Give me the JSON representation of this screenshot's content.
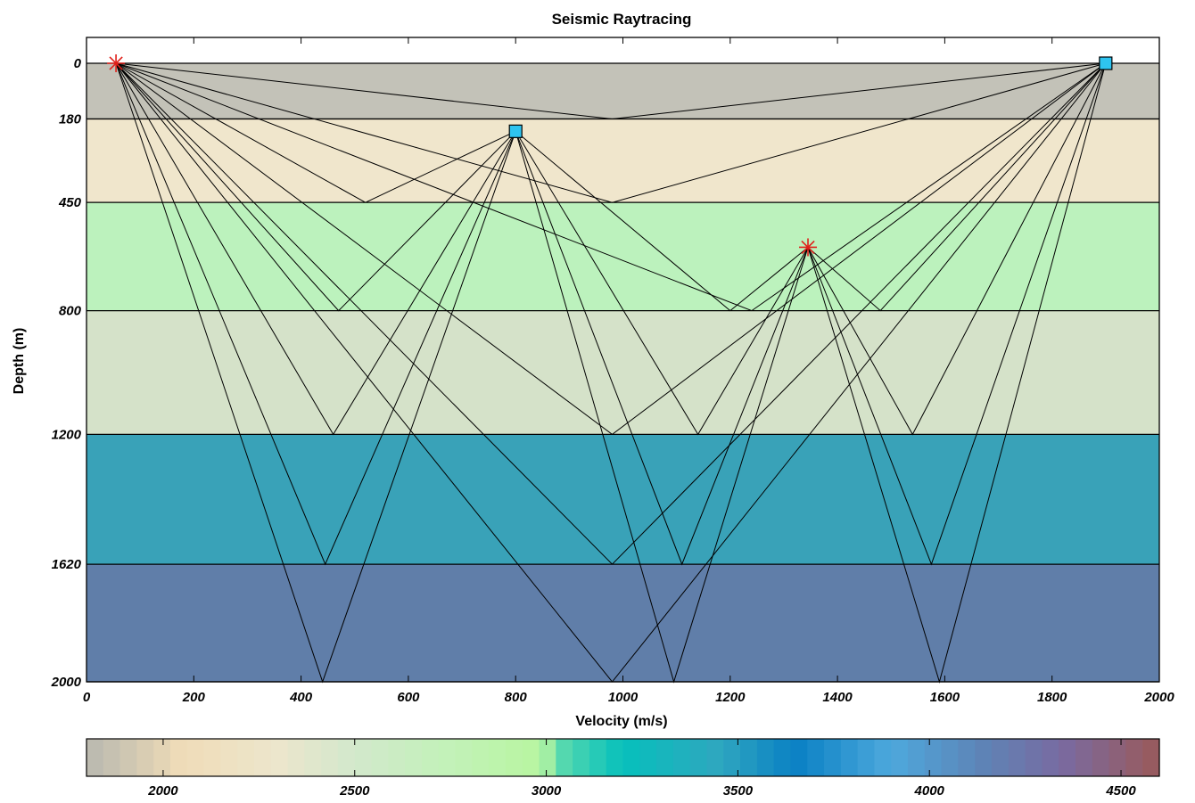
{
  "chart_data": {
    "type": "raytrace",
    "title": "Seismic Raytracing",
    "xlabel": "Velocity (m/s)",
    "ylabel": "Depth (m)",
    "xlim": [
      0,
      2000
    ],
    "ylim": [
      0,
      2000
    ],
    "x_ticks": [
      0,
      200,
      400,
      600,
      800,
      1000,
      1200,
      1400,
      1600,
      1800,
      2000
    ],
    "y_ticks": [
      0,
      180,
      450,
      800,
      1200,
      1620,
      2000
    ],
    "layers": [
      {
        "top": 0,
        "bottom": 180,
        "color": "#c3c2b8"
      },
      {
        "top": 180,
        "bottom": 450,
        "color": "#f0e6cc"
      },
      {
        "top": 450,
        "bottom": 800,
        "color": "#bcf2bd"
      },
      {
        "top": 800,
        "bottom": 1200,
        "color": "#d5e2c9"
      },
      {
        "top": 1200,
        "bottom": 1620,
        "color": "#39a2b8"
      },
      {
        "top": 1620,
        "bottom": 2000,
        "color": "#607ea9"
      }
    ],
    "sources": [
      {
        "x": 55,
        "y": 0
      },
      {
        "x": 1345,
        "y": 595
      }
    ],
    "receivers": [
      {
        "x": 800,
        "y": 220
      },
      {
        "x": 1900,
        "y": 0
      }
    ],
    "rays": [
      [
        [
          55,
          0
        ],
        [
          980,
          180
        ],
        [
          1900,
          0
        ]
      ],
      [
        [
          55,
          0
        ],
        [
          980,
          450
        ],
        [
          1900,
          0
        ]
      ],
      [
        [
          55,
          0
        ],
        [
          1240,
          800
        ],
        [
          1900,
          0
        ]
      ],
      [
        [
          55,
          0
        ],
        [
          980,
          1200
        ],
        [
          1900,
          0
        ]
      ],
      [
        [
          55,
          0
        ],
        [
          980,
          1620
        ],
        [
          1900,
          0
        ]
      ],
      [
        [
          55,
          0
        ],
        [
          980,
          2000
        ],
        [
          1900,
          0
        ]
      ],
      [
        [
          55,
          0
        ],
        [
          520,
          450
        ],
        [
          800,
          220
        ]
      ],
      [
        [
          55,
          0
        ],
        [
          470,
          800
        ],
        [
          800,
          220
        ]
      ],
      [
        [
          55,
          0
        ],
        [
          460,
          1200
        ],
        [
          800,
          220
        ]
      ],
      [
        [
          55,
          0
        ],
        [
          445,
          1620
        ],
        [
          800,
          220
        ]
      ],
      [
        [
          55,
          0
        ],
        [
          440,
          2000
        ],
        [
          800,
          220
        ]
      ],
      [
        [
          1345,
          595
        ],
        [
          1200,
          800
        ],
        [
          800,
          220
        ]
      ],
      [
        [
          1345,
          595
        ],
        [
          1140,
          1200
        ],
        [
          800,
          220
        ]
      ],
      [
        [
          1345,
          595
        ],
        [
          1110,
          1620
        ],
        [
          800,
          220
        ]
      ],
      [
        [
          1345,
          595
        ],
        [
          1095,
          2000
        ],
        [
          800,
          220
        ]
      ],
      [
        [
          1345,
          595
        ],
        [
          1480,
          800
        ],
        [
          1900,
          0
        ]
      ],
      [
        [
          1345,
          595
        ],
        [
          1540,
          1200
        ],
        [
          1900,
          0
        ]
      ],
      [
        [
          1345,
          595
        ],
        [
          1575,
          1620
        ],
        [
          1900,
          0
        ]
      ],
      [
        [
          1345,
          595
        ],
        [
          1590,
          2000
        ],
        [
          1900,
          0
        ]
      ]
    ],
    "colorbar": {
      "range": [
        1800,
        4600
      ],
      "ticks": [
        2000,
        2500,
        3000,
        3500,
        4000,
        4500
      ],
      "stops": [
        {
          "v": 1800,
          "c": "#b8b8b0"
        },
        {
          "v": 1950,
          "c": "#d8cdb3"
        },
        {
          "v": 2050,
          "c": "#f0dcb8"
        },
        {
          "v": 2300,
          "c": "#ece6cc"
        },
        {
          "v": 2500,
          "c": "#d2e8cc"
        },
        {
          "v": 2750,
          "c": "#c2f2b8"
        },
        {
          "v": 2990,
          "c": "#b8f5a0"
        },
        {
          "v": 3050,
          "c": "#4ed6b0"
        },
        {
          "v": 3200,
          "c": "#06c0bc"
        },
        {
          "v": 3450,
          "c": "#2fa7bf"
        },
        {
          "v": 3650,
          "c": "#0a80c4"
        },
        {
          "v": 3900,
          "c": "#4ea8dc"
        },
        {
          "v": 4150,
          "c": "#5f82b5"
        },
        {
          "v": 4350,
          "c": "#7a6aa0"
        },
        {
          "v": 4600,
          "c": "#9a5a5a"
        }
      ]
    }
  }
}
